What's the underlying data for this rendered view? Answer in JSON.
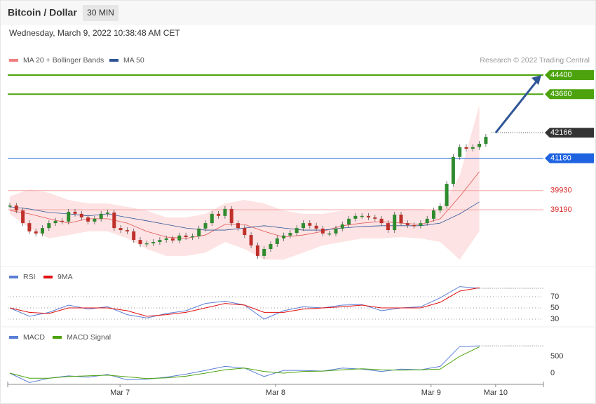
{
  "chart_data": {
    "type": "candlestick",
    "title": "Bitcoin / Dollar",
    "timeframe": "30 MIN",
    "timestamp": "Wednesday, March 9, 2022 10:38:48 AM CET",
    "source": "Research © 2022 Trading Central",
    "closes": [
      39350,
      39160,
      38670,
      38350,
      38270,
      38480,
      38670,
      38760,
      38730,
      39110,
      39030,
      38890,
      38730,
      38840,
      39030,
      39080,
      38480,
      38400,
      38350,
      38020,
      37860,
      37890,
      37940,
      38020,
      38080,
      38000,
      38190,
      38130,
      38160,
      38460,
      38670,
      39030,
      38950,
      39220,
      38670,
      38480,
      38210,
      37810,
      37400,
      37670,
      37860,
      38080,
      38190,
      38290,
      38480,
      38670,
      38570,
      38460,
      38270,
      38270,
      38460,
      38620,
      38840,
      38950,
      38950,
      38890,
      38840,
      38670,
      38400,
      39000,
      38670,
      38590,
      38570,
      38670,
      38840,
      39160,
      39330,
      40190,
      41230,
      41610,
      41550,
      41610,
      41740,
      42010
    ],
    "up_color": "#2e8b2e",
    "down_color": "#c0302a",
    "ylim": [
      37045,
      46218
    ],
    "xlim": [
      0,
      82
    ],
    "xticks": [
      {
        "value": 16.9,
        "label": "Mar 7"
      },
      {
        "value": 40.75,
        "label": "Mar 8"
      },
      {
        "value": 64.6,
        "label": "Mar 9"
      },
      {
        "value": 74.5,
        "label": "Mar 10"
      }
    ],
    "overlay_x": [
      0,
      3,
      6,
      9,
      12,
      15,
      18,
      21,
      24,
      27,
      30,
      33,
      36,
      39,
      42,
      45,
      48,
      51,
      54,
      57,
      60,
      63,
      66,
      69,
      72
    ],
    "series": [
      {
        "name": "MA 20 + Bollinger Bands",
        "color": "#e05555",
        "values": [
          39160,
          39030,
          38840,
          38670,
          38840,
          38840,
          38670,
          38350,
          38130,
          38080,
          38210,
          38620,
          38620,
          38350,
          38130,
          38210,
          38350,
          38570,
          38670,
          38730,
          38670,
          38620,
          38840,
          39700,
          40660
        ],
        "upper": [
          39700,
          39980,
          39840,
          39570,
          39430,
          39430,
          39300,
          39160,
          38890,
          38890,
          39030,
          39430,
          39570,
          39430,
          39160,
          39030,
          39030,
          39160,
          39160,
          39220,
          39220,
          39220,
          39160,
          40520,
          43230
        ],
        "lower": [
          39030,
          38480,
          38080,
          38210,
          38350,
          38350,
          38080,
          37670,
          37400,
          37400,
          37530,
          37940,
          37670,
          37260,
          37260,
          37530,
          37810,
          37940,
          38080,
          38080,
          38130,
          38080,
          37940,
          37260,
          38350
        ]
      },
      {
        "name": "MA 50",
        "color": "#2f5597",
        "values": [
          39300,
          39220,
          39080,
          39030,
          38950,
          39030,
          38890,
          38760,
          38620,
          38480,
          38400,
          38400,
          38480,
          38570,
          38480,
          38400,
          38400,
          38480,
          38540,
          38570,
          38570,
          38570,
          38670,
          39030,
          39490
        ]
      }
    ],
    "levels": [
      {
        "value": 44400,
        "color": "#4ca30d",
        "style": "box"
      },
      {
        "value": 43660,
        "color": "#4ca30d",
        "style": "box"
      },
      {
        "value": 42166,
        "color": "#333333",
        "style": "last"
      },
      {
        "value": 41180,
        "color": "#1f63e0",
        "style": "box"
      },
      {
        "value": 39930,
        "color": "#d62a2a",
        "style": "text"
      },
      {
        "value": 39190,
        "color": "#d62a2a",
        "style": "text"
      }
    ],
    "rsi": {
      "ylim": [
        20,
        120
      ],
      "yticks": [
        70,
        50,
        30
      ],
      "series": [
        {
          "name": "RSI",
          "color": "#5b7fd6",
          "values": [
            50,
            35,
            42,
            55,
            48,
            52,
            38,
            32,
            40,
            45,
            58,
            62,
            55,
            30,
            45,
            52,
            50,
            55,
            56,
            45,
            50,
            52,
            68,
            88,
            85
          ]
        },
        {
          "name": "9MA",
          "color": "#e01010",
          "values": [
            50,
            42,
            40,
            50,
            50,
            50,
            45,
            35,
            38,
            42,
            50,
            58,
            55,
            42,
            42,
            48,
            50,
            52,
            55,
            50,
            50,
            50,
            60,
            80,
            86
          ]
        }
      ]
    },
    "macd": {
      "ylim": [
        -333,
        1333
      ],
      "yticks": [
        500,
        0
      ],
      "series": [
        {
          "name": "MACD",
          "color": "#5b7fd6",
          "values": [
            0,
            -280,
            -150,
            -80,
            -120,
            -40,
            -200,
            -180,
            -120,
            -30,
            80,
            200,
            150,
            -100,
            80,
            80,
            60,
            150,
            120,
            50,
            120,
            100,
            200,
            790,
            810
          ]
        },
        {
          "name": "MACD Signal",
          "color": "#4ca30d",
          "values": [
            0,
            -150,
            -150,
            -100,
            -80,
            -60,
            -110,
            -160,
            -140,
            -90,
            0,
            100,
            150,
            50,
            0,
            50,
            60,
            100,
            130,
            100,
            90,
            100,
            120,
            500,
            780
          ]
        }
      ]
    }
  }
}
